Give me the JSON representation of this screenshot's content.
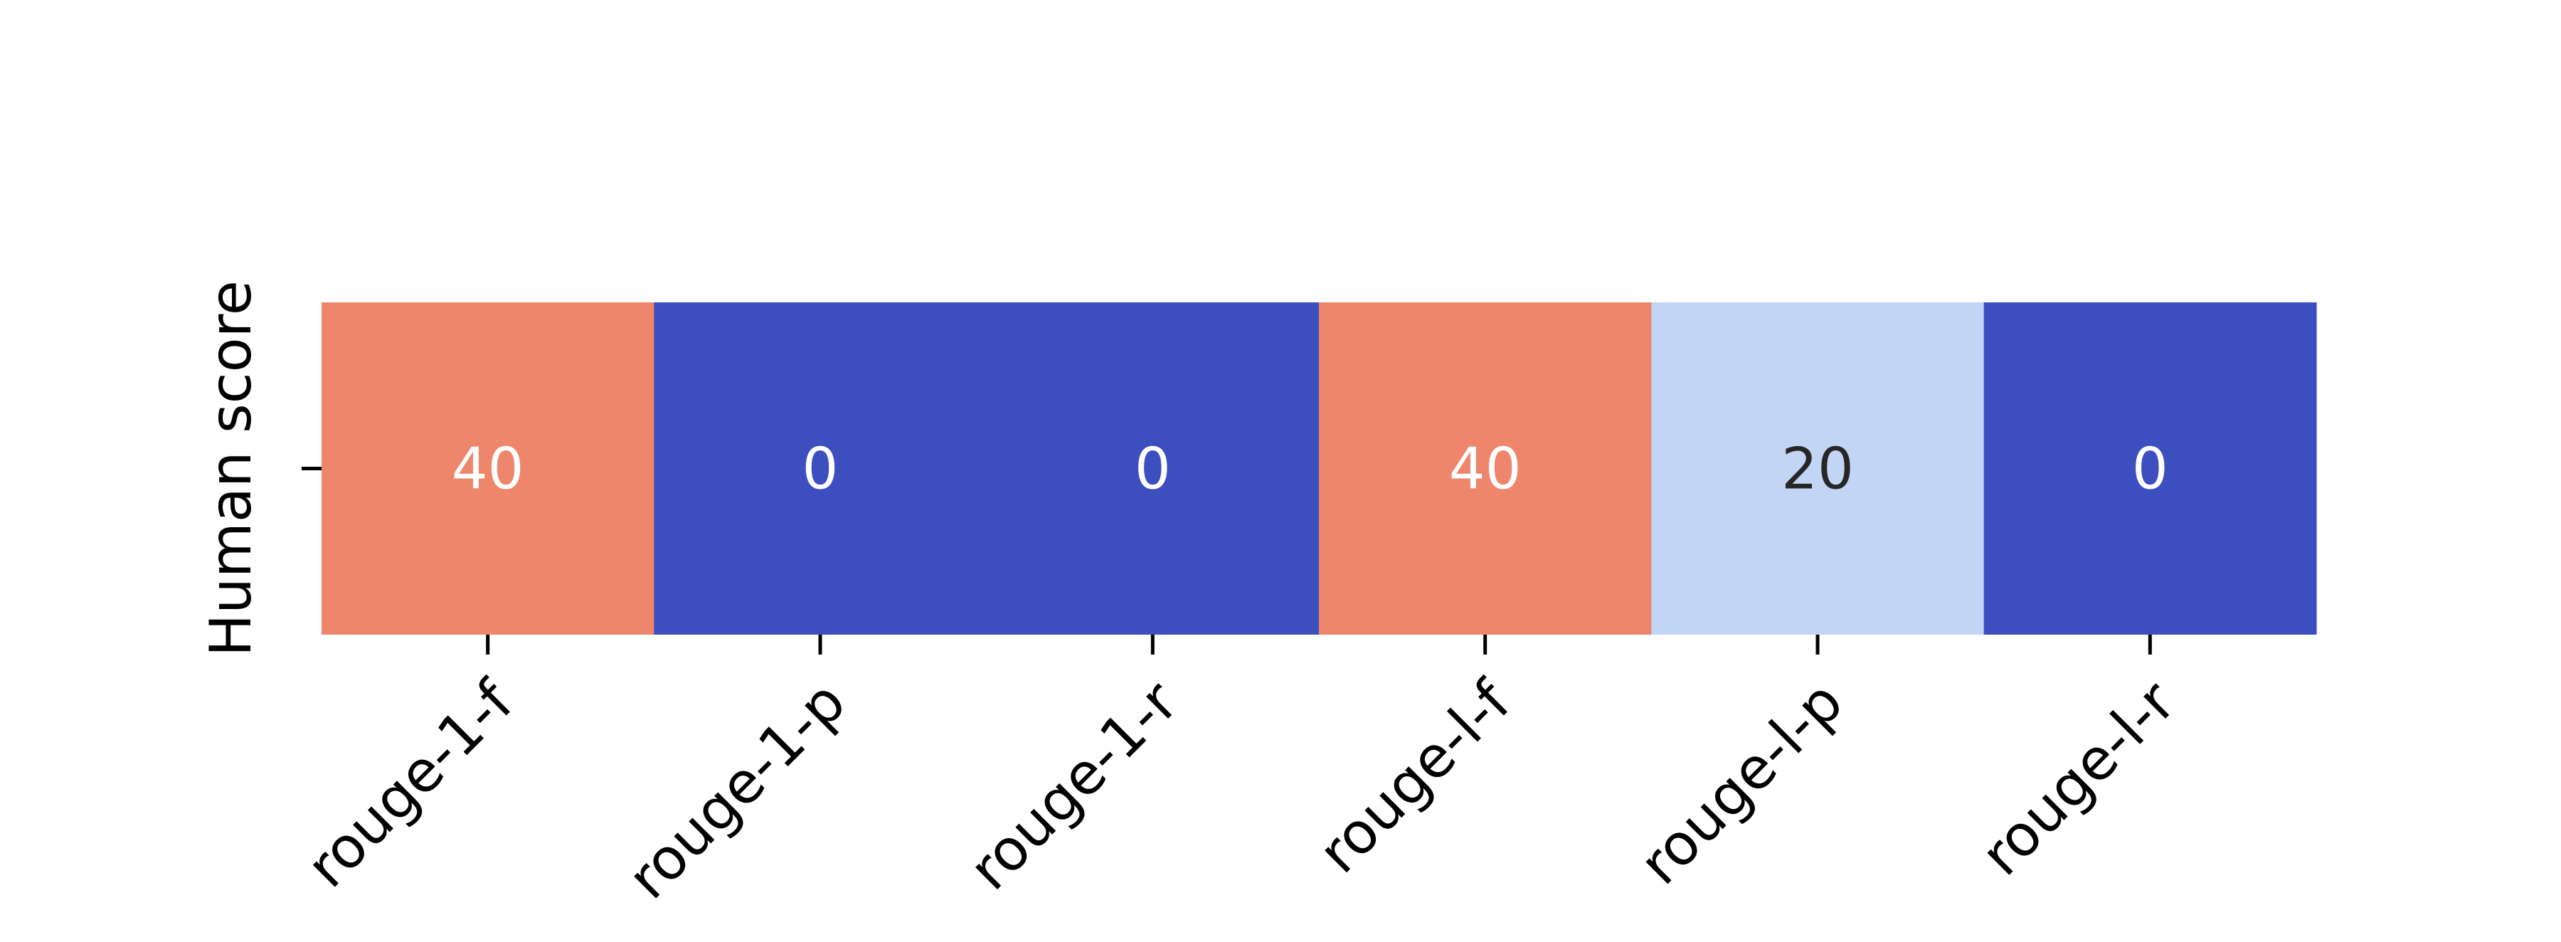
{
  "chart_data": {
    "type": "heatmap",
    "title": "",
    "xlabel": "",
    "ylabel": "",
    "rows": [
      "Human score"
    ],
    "columns": [
      "rouge-1-f",
      "rouge-1-p",
      "rouge-1-r",
      "rouge-l-f",
      "rouge-l-p",
      "rouge-l-r"
    ],
    "values": [
      [
        40,
        0,
        0,
        40,
        20,
        0
      ]
    ],
    "colormap": "coolwarm",
    "cell_colors": [
      "#ee866b",
      "#3d4fbf",
      "#3d4fbf",
      "#ee866b",
      "#c2d5f4",
      "#3d4fbf"
    ],
    "annotation_colors": [
      "#ffffff",
      "#ffffff",
      "#ffffff",
      "#ffffff",
      "#262626",
      "#ffffff"
    ],
    "colorbar": false,
    "grid": false
  }
}
